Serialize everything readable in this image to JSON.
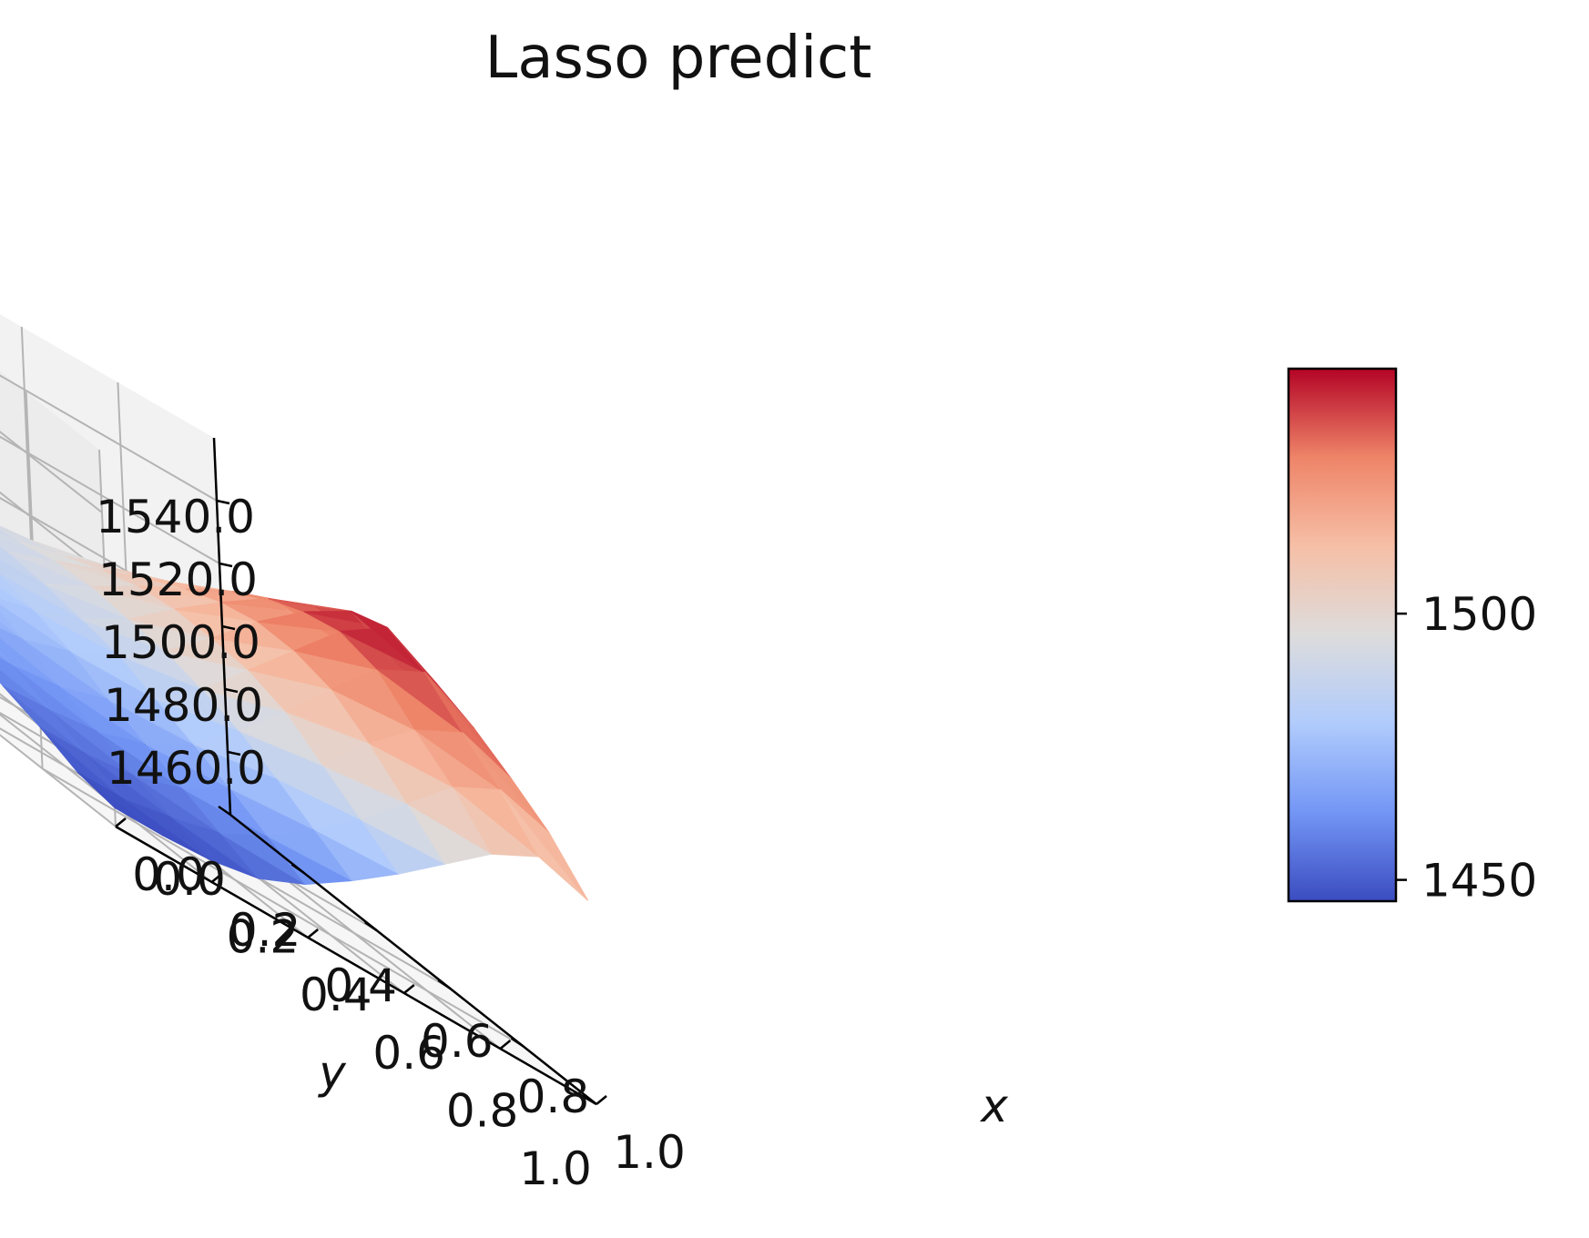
{
  "chart_data": {
    "type": "surface3d",
    "title": "Lasso predict",
    "xlabel": "x",
    "ylabel": "y",
    "zlabel": "",
    "x_range": [
      0.0,
      1.0
    ],
    "y_range": [
      0.0,
      1.0
    ],
    "z_range": [
      1440,
      1560
    ],
    "x_ticks": [
      "0.0",
      "0.2",
      "0.4",
      "0.6",
      "0.8",
      "1.0"
    ],
    "y_ticks": [
      "0.0",
      "0.2",
      "0.4",
      "0.6",
      "0.8",
      "1.0"
    ],
    "z_ticks": [
      "1460.0",
      "1480.0",
      "1500.0",
      "1520.0",
      "1540.0"
    ],
    "grid": true,
    "colormap": "coolwarm",
    "colormap_stops": [
      "#3b4cc0",
      "#7396f5",
      "#b0cbfc",
      "#dddcdc",
      "#f6bfa6",
      "#ee8468",
      "#b40426"
    ],
    "colorbar": {
      "placement": "right",
      "min": 1446,
      "max": 1546,
      "ticks": [
        "1450",
        "1500"
      ]
    },
    "surface": {
      "x": [
        0.0,
        0.1,
        0.2,
        0.3,
        0.4,
        0.5,
        0.6,
        0.7,
        0.8,
        0.9,
        1.0
      ],
      "y": [
        0.0,
        0.1,
        0.2,
        0.3,
        0.4,
        0.5,
        0.6,
        0.7,
        0.8,
        0.9,
        1.0
      ],
      "z": [
        [
          1480,
          1482,
          1484,
          1486,
          1488,
          1490,
          1492,
          1495,
          1499,
          1503,
          1500
        ],
        [
          1480,
          1482,
          1483,
          1486,
          1489,
          1492,
          1496,
          1501,
          1506,
          1510,
          1505
        ],
        [
          1479,
          1480,
          1483,
          1485,
          1489,
          1495,
          1501,
          1507,
          1513,
          1518,
          1512
        ],
        [
          1476,
          1478,
          1480,
          1483,
          1488,
          1496,
          1505,
          1513,
          1521,
          1526,
          1519
        ],
        [
          1472,
          1474,
          1476,
          1480,
          1486,
          1495,
          1507,
          1518,
          1528,
          1534,
          1527
        ],
        [
          1467,
          1469,
          1471,
          1476,
          1484,
          1494,
          1507,
          1521,
          1533,
          1542,
          1533
        ],
        [
          1462,
          1463,
          1465,
          1470,
          1479,
          1491,
          1506,
          1521,
          1536,
          1546,
          1537
        ],
        [
          1457,
          1458,
          1460,
          1465,
          1474,
          1487,
          1502,
          1518,
          1533,
          1541,
          1532
        ],
        [
          1453,
          1453,
          1455,
          1460,
          1469,
          1481,
          1494,
          1510,
          1523,
          1531,
          1525
        ],
        [
          1448,
          1448,
          1451,
          1455,
          1463,
          1474,
          1486,
          1500,
          1514,
          1522,
          1517
        ],
        [
          1446,
          1446,
          1447,
          1450,
          1457,
          1467,
          1478,
          1490,
          1502,
          1510,
          1505
        ]
      ]
    }
  }
}
